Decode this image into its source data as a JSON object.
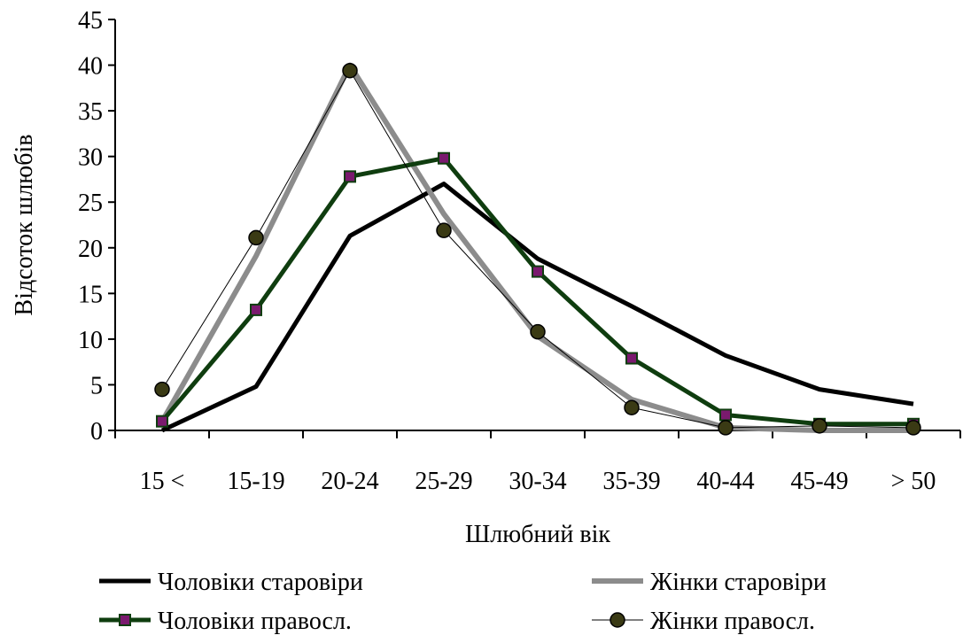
{
  "chart_data": {
    "type": "line",
    "categories": [
      "15 <",
      "15-19",
      "20-24",
      "25-29",
      "30-34",
      "35-39",
      "40-44",
      "45-49",
      "> 50"
    ],
    "series": [
      {
        "name": "Чоловіки старовіри",
        "color": "#000000",
        "values": [
          0,
          4.8,
          21.3,
          27,
          18.8,
          13.6,
          8.2,
          4.5,
          2.9
        ]
      },
      {
        "name": "Жінки старовіри",
        "color": "#8c8c8c",
        "values": [
          1,
          19.1,
          40,
          23.7,
          10.3,
          3.4,
          0.3,
          0,
          0
        ]
      },
      {
        "name": "Чоловіки правосл.",
        "color": "#0f3d0f",
        "marker": "square",
        "marker_color": "#7a1a6e",
        "values": [
          1,
          13.2,
          27.8,
          29.8,
          17.4,
          7.9,
          1.7,
          0.7,
          0.7
        ]
      },
      {
        "name": "Жінки правосл.",
        "color": "#000000",
        "marker": "circle",
        "marker_color": "#3a3a14",
        "values": [
          4.5,
          21.1,
          39.4,
          21.9,
          10.8,
          2.5,
          0.3,
          0.5,
          0.3
        ]
      }
    ],
    "xlabel": "Шлюбний вік",
    "ylabel": "Відсоток шлюбів",
    "ylim": [
      0,
      45
    ],
    "yticks": [
      0,
      5,
      10,
      15,
      20,
      25,
      30,
      35,
      40,
      45
    ],
    "grid": false
  }
}
